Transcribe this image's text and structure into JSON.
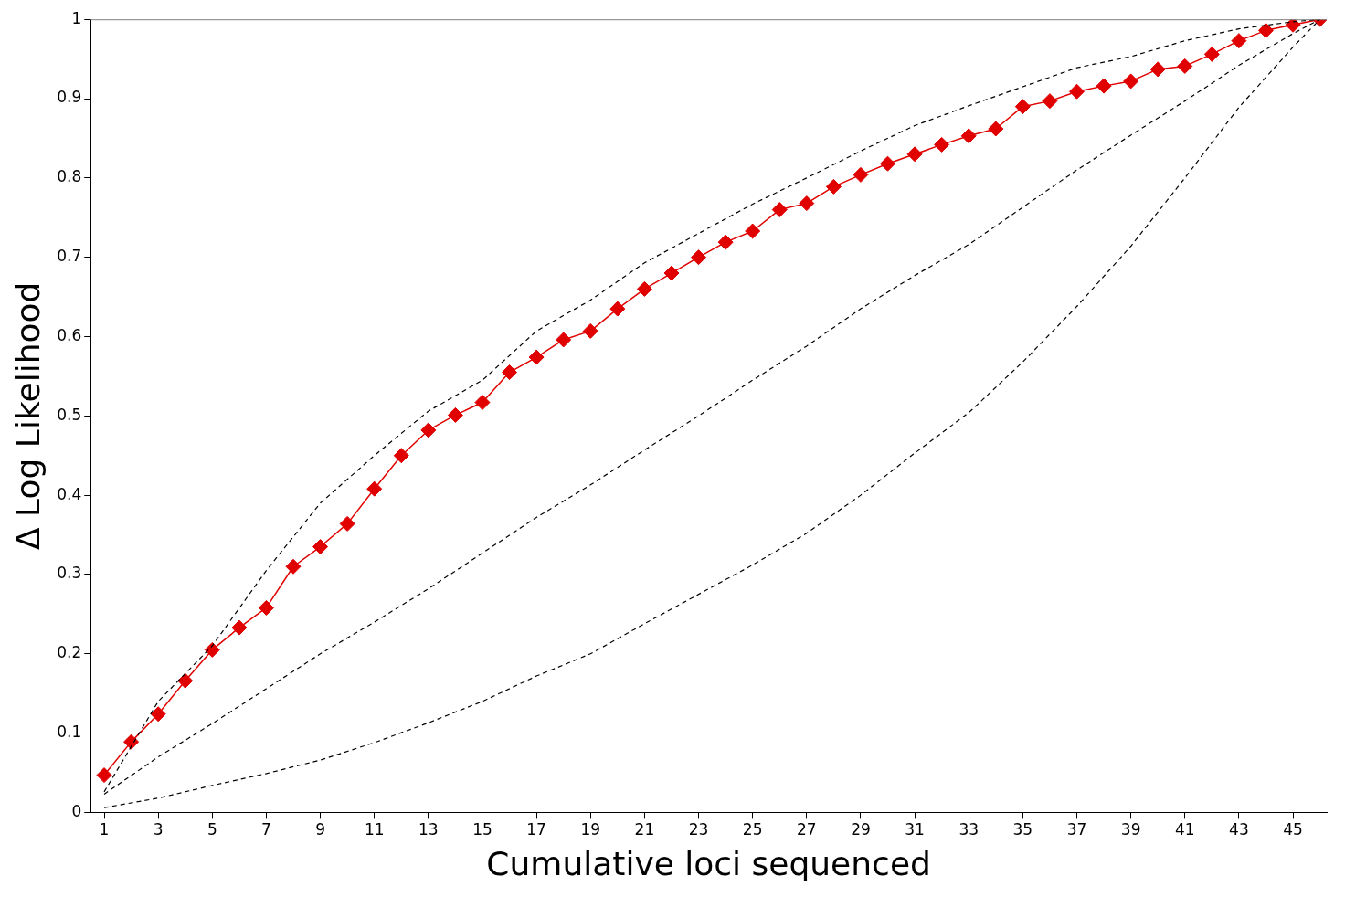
{
  "chart_data": {
    "type": "line",
    "xlabel": "Cumulative loci sequenced",
    "ylabel": "Δ Log Likelihood",
    "xlim": [
      0.5,
      46.25
    ],
    "xticks": [
      1,
      3,
      5,
      7,
      9,
      11,
      13,
      15,
      17,
      19,
      21,
      23,
      25,
      27,
      29,
      31,
      33,
      35,
      37,
      39,
      41,
      43,
      45
    ],
    "ylim": [
      0,
      1
    ],
    "yticks": [
      0,
      0.1,
      0.2,
      0.3,
      0.4,
      0.5,
      0.6,
      0.7,
      0.8,
      0.9,
      1
    ],
    "grid": false,
    "legend": false,
    "series": [
      {
        "color": "#000000",
        "line_style": "dashed",
        "marker": "none",
        "x": [
          1,
          3,
          5,
          7,
          9,
          11,
          13,
          15,
          17,
          19,
          21,
          23,
          25,
          27,
          29,
          31,
          33,
          35,
          37,
          39,
          41,
          43,
          45,
          46
        ],
        "values": [
          0.026,
          0.14,
          0.21,
          0.305,
          0.39,
          0.45,
          0.506,
          0.545,
          0.607,
          0.646,
          0.693,
          0.73,
          0.767,
          0.8,
          0.834,
          0.866,
          0.891,
          0.915,
          0.939,
          0.953,
          0.973,
          0.988,
          0.997,
          1.0
        ]
      },
      {
        "color": "#000000",
        "line_style": "dashed",
        "marker": "none",
        "x": [
          1,
          3,
          5,
          7,
          9,
          11,
          13,
          15,
          17,
          19,
          21,
          23,
          25,
          27,
          29,
          31,
          33,
          35,
          37,
          39,
          41,
          43,
          45,
          46
        ],
        "values": [
          0.023,
          0.07,
          0.112,
          0.156,
          0.2,
          0.24,
          0.282,
          0.327,
          0.372,
          0.413,
          0.457,
          0.5,
          0.545,
          0.588,
          0.635,
          0.677,
          0.716,
          0.763,
          0.81,
          0.854,
          0.897,
          0.942,
          0.982,
          1.0
        ]
      },
      {
        "color": "#000000",
        "line_style": "dashed",
        "marker": "none",
        "x": [
          1,
          3,
          5,
          7,
          9,
          11,
          13,
          15,
          17,
          19,
          21,
          23,
          25,
          27,
          29,
          31,
          33,
          35,
          37,
          39,
          41,
          43,
          45,
          46
        ],
        "values": [
          0.006,
          0.018,
          0.034,
          0.049,
          0.066,
          0.088,
          0.113,
          0.14,
          0.172,
          0.2,
          0.238,
          0.275,
          0.312,
          0.352,
          0.4,
          0.453,
          0.504,
          0.568,
          0.638,
          0.714,
          0.8,
          0.889,
          0.965,
          1.0
        ]
      },
      {
        "color": "#e00000",
        "line_style": "solid",
        "marker": "diamond",
        "x": [
          1,
          2,
          3,
          4,
          5,
          6,
          7,
          8,
          9,
          10,
          11,
          12,
          13,
          14,
          15,
          16,
          17,
          18,
          19,
          20,
          21,
          22,
          23,
          24,
          25,
          26,
          27,
          28,
          29,
          30,
          31,
          32,
          33,
          34,
          35,
          36,
          37,
          38,
          39,
          40,
          41,
          42,
          43,
          44,
          45,
          46
        ],
        "values": [
          0.047,
          0.089,
          0.124,
          0.166,
          0.205,
          0.233,
          0.258,
          0.31,
          0.335,
          0.364,
          0.408,
          0.45,
          0.482,
          0.501,
          0.517,
          0.555,
          0.574,
          0.596,
          0.607,
          0.635,
          0.66,
          0.68,
          0.7,
          0.719,
          0.733,
          0.76,
          0.768,
          0.789,
          0.804,
          0.818,
          0.83,
          0.842,
          0.853,
          0.862,
          0.89,
          0.897,
          0.909,
          0.916,
          0.922,
          0.937,
          0.941,
          0.956,
          0.973,
          0.986,
          0.993,
          1.0
        ]
      }
    ]
  }
}
